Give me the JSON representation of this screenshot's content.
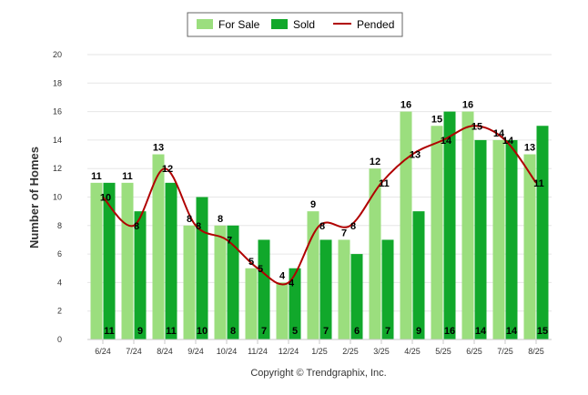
{
  "chart_data": {
    "type": "bar",
    "categories": [
      "6/24",
      "7/24",
      "8/24",
      "9/24",
      "10/24",
      "11/24",
      "12/24",
      "1/25",
      "2/25",
      "3/25",
      "4/25",
      "5/25",
      "6/25",
      "7/25",
      "8/25"
    ],
    "series": [
      {
        "name": "For Sale",
        "kind": "bar",
        "color": "#9bde7e",
        "values": [
          11,
          11,
          13,
          8,
          8,
          5,
          4,
          9,
          7,
          12,
          16,
          15,
          16,
          14,
          13
        ]
      },
      {
        "name": "Sold",
        "kind": "bar",
        "color": "#11a82b",
        "values": [
          11,
          9,
          11,
          10,
          8,
          7,
          5,
          7,
          6,
          7,
          9,
          16,
          14,
          14,
          15
        ]
      },
      {
        "name": "Pended",
        "kind": "line",
        "color": "#b00000",
        "values": [
          10,
          8,
          12,
          8,
          7,
          5,
          4,
          8,
          8,
          11,
          13,
          14,
          15,
          14,
          11
        ]
      }
    ],
    "ylabel": "Number of Homes",
    "xlabel": "",
    "ylim": [
      0,
      20
    ],
    "yticks": [
      "0",
      "2",
      "4",
      "6",
      "8",
      "10",
      "12",
      "14",
      "16",
      "18",
      "20"
    ],
    "grid": true,
    "legend": "top-center",
    "credit": "Copyright © Trendgraphix, Inc."
  }
}
